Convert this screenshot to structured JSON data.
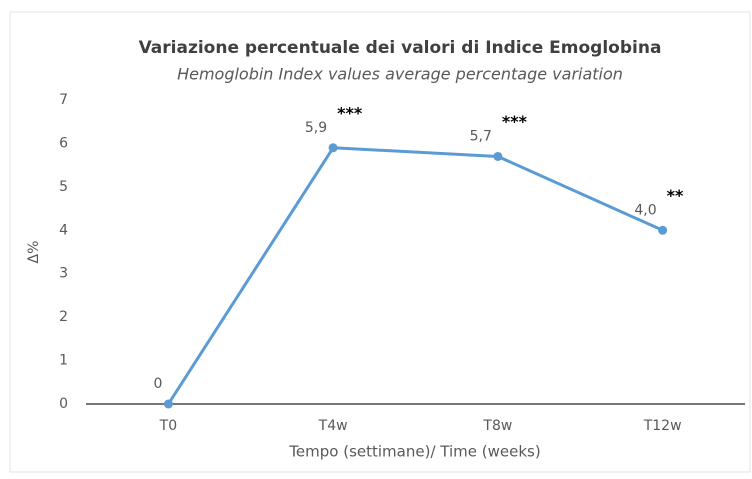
{
  "chart_data": {
    "type": "line",
    "title": "Variazione percentuale dei valori di Indice Emoglobina",
    "subtitle": "Hemoglobin Index values average percentage variation",
    "y_label": "Δ%",
    "x_label": "Tempo (settimane)/ Time (weeks)",
    "categories": [
      "T0",
      "T4w",
      "T8w",
      "T12w"
    ],
    "values": [
      0,
      5.9,
      5.7,
      4.0
    ],
    "value_labels": [
      "0",
      "5,9",
      "5,7",
      "4,0"
    ],
    "annotations": [
      null,
      "***",
      "***",
      "**"
    ],
    "color": "#5b9bd5",
    "ylim": [
      0,
      7
    ],
    "yticks": [
      0,
      1,
      2,
      3,
      4,
      5,
      6,
      7
    ],
    "grid": false
  }
}
